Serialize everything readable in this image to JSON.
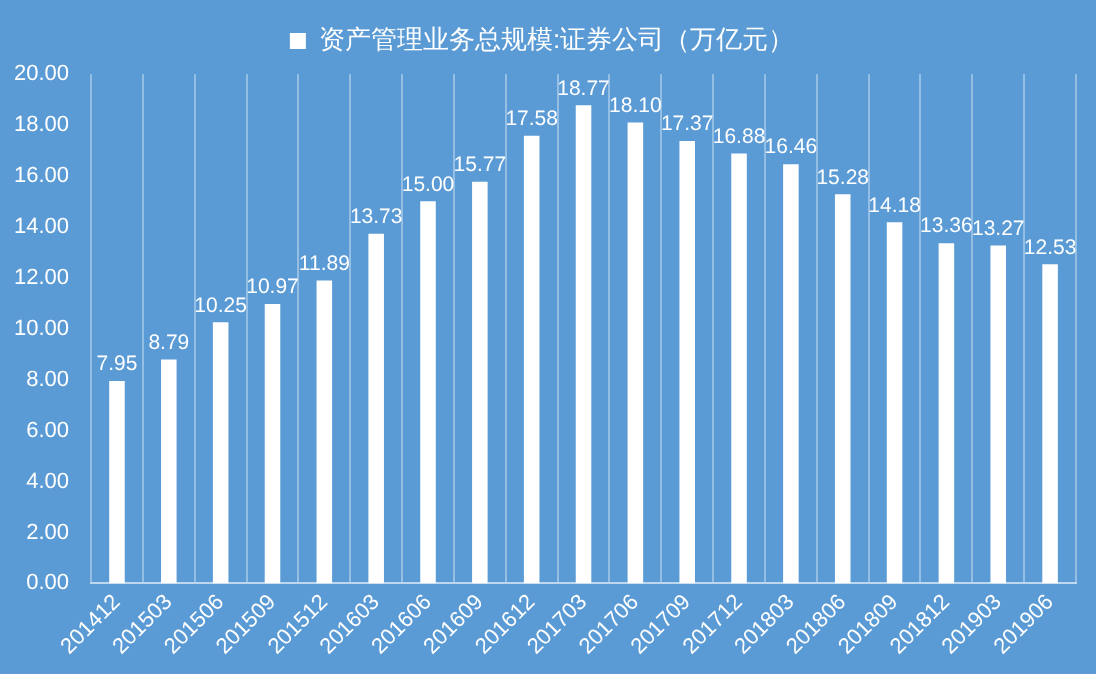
{
  "chart_data": {
    "type": "bar",
    "categories": [
      "201412",
      "201503",
      "201506",
      "201509",
      "201512",
      "201603",
      "201606",
      "201609",
      "201612",
      "201703",
      "201706",
      "201709",
      "201712",
      "201803",
      "201806",
      "201809",
      "201812",
      "201903",
      "201906"
    ],
    "series": [
      {
        "name": "资产管理业务总规模:证券公司（万亿元）",
        "color": "#ffffff",
        "values": [
          7.95,
          8.79,
          10.25,
          10.97,
          11.89,
          13.73,
          15.0,
          15.77,
          17.58,
          18.77,
          18.1,
          17.37,
          16.88,
          16.46,
          15.28,
          14.18,
          13.36,
          13.27,
          12.53
        ],
        "value_labels": [
          "7.95",
          "8.79",
          "10.25",
          "10.97",
          "11.89",
          "13.73",
          "15.00",
          "15.77",
          "17.58",
          "18.77",
          "18.10",
          "17.37",
          "16.88",
          "16.46",
          "15.28",
          "14.18",
          "13.36",
          "13.27",
          "12.53"
        ]
      }
    ],
    "ylim": [
      0,
      20
    ],
    "yticks": [
      {
        "value": 0,
        "label": "0.00"
      },
      {
        "value": 2,
        "label": "2.00"
      },
      {
        "value": 4,
        "label": "4.00"
      },
      {
        "value": 6,
        "label": "6.00"
      },
      {
        "value": 8,
        "label": "8.00"
      },
      {
        "value": 10,
        "label": "10.00"
      },
      {
        "value": 12,
        "label": "12.00"
      },
      {
        "value": 14,
        "label": "14.00"
      },
      {
        "value": 16,
        "label": "16.00"
      },
      {
        "value": 18,
        "label": "18.00"
      },
      {
        "value": 20,
        "label": "20.00"
      }
    ],
    "grid": "x",
    "legend": "top"
  }
}
